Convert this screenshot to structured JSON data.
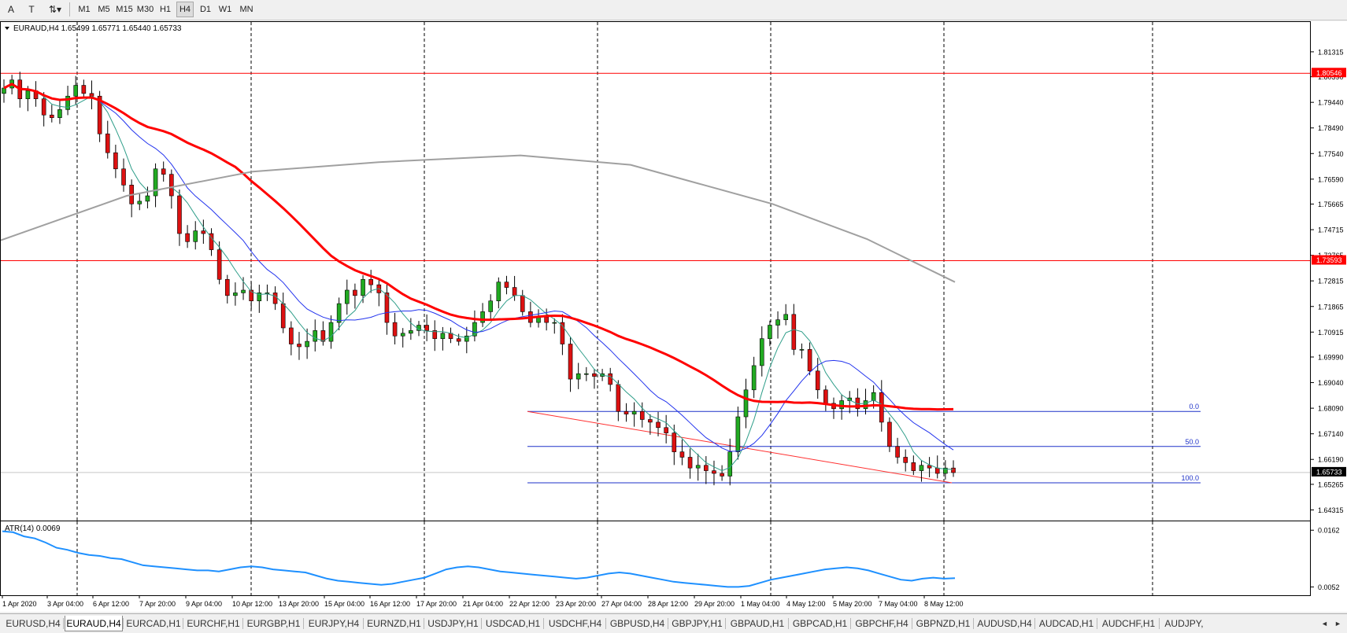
{
  "toolbar": {
    "tools": [
      {
        "glyph": "A",
        "icon": "text-tool-icon"
      },
      {
        "glyph": "T",
        "icon": "text-label-tool-icon"
      },
      {
        "glyph": "⇅▾",
        "icon": "arrow-tool-icon"
      }
    ],
    "timeframes": [
      "M1",
      "M5",
      "M15",
      "M30",
      "H1",
      "H4",
      "D1",
      "W1",
      "MN"
    ],
    "active_timeframe": "H4"
  },
  "chart": {
    "header": "EURAUD,H4  1.65499 1.65771 1.65440 1.65733",
    "price_ticks": [
      "1.81315",
      "1.80390",
      "1.79440",
      "1.78490",
      "1.77540",
      "1.76590",
      "1.75665",
      "1.74715",
      "1.73765",
      "1.72815",
      "1.71865",
      "1.70915",
      "1.69990",
      "1.69040",
      "1.68090",
      "1.67140",
      "1.66190",
      "1.65265",
      "1.64315"
    ],
    "price_range": [
      1.6395,
      1.8245
    ],
    "hlines": [
      {
        "label": "1.80546",
        "price": 1.80546,
        "color": "#ff0000"
      },
      {
        "label": "1.73593",
        "price": 1.73593,
        "color": "#ff0000"
      }
    ],
    "current_price": {
      "label": "1.65733",
      "price": 1.65733
    },
    "fib_levels": [
      {
        "label": "0.0",
        "price": 1.68
      },
      {
        "label": "50.0",
        "price": 1.667
      },
      {
        "label": "100.0",
        "price": 1.6535
      }
    ],
    "time_labels": [
      "1 Apr 2020",
      "3 Apr 04:00",
      "6 Apr 12:00",
      "7 Apr 20:00",
      "9 Apr 04:00",
      "10 Apr 12:00",
      "13 Apr 20:00",
      "15 Apr 04:00",
      "16 Apr 12:00",
      "17 Apr 20:00",
      "21 Apr 04:00",
      "22 Apr 12:00",
      "23 Apr 20:00",
      "27 Apr 04:00",
      "28 Apr 12:00",
      "29 Apr 20:00",
      "1 May 04:00",
      "4 May 12:00",
      "5 May 20:00",
      "7 May 04:00",
      "8 May 12:00"
    ],
    "colors": {
      "bull": "#22aa22",
      "bear": "#dd1111",
      "ma_fast": "#2f9e8a",
      "ma_mid": "#2233ee",
      "ma_slow": "#ff0000",
      "ma_long": "#a0a0a0",
      "fib": "#1e32c8",
      "trend": "#ff3030"
    }
  },
  "indicator": {
    "label": "ATR(14) 0.0069",
    "ticks": [
      "0.0162",
      "0.0052"
    ],
    "color": "#1e90ff"
  },
  "tabs": [
    "EURUSD,H4",
    "EURAUD,H4",
    "EURCAD,H1",
    "EURCHF,H1",
    "EURGBP,H1",
    "EURJPY,H4",
    "EURNZD,H1",
    "USDJPY,H1",
    "USDCAD,H1",
    "USDCHF,H4",
    "GBPUSD,H4",
    "GBPJPY,H1",
    "GBPAUD,H1",
    "GBPCAD,H1",
    "GBPCHF,H4",
    "GBPNZD,H1",
    "AUDUSD,H4",
    "AUDCAD,H1",
    "AUDCHF,H1",
    "AUDJPY,"
  ],
  "active_tab": "EURAUD,H4",
  "chart_data": {
    "type": "line",
    "title": "EURAUD,H4",
    "series": [
      {
        "values": [
          1.8,
          1.803,
          1.796,
          1.799,
          1.796,
          1.79,
          1.789,
          1.792,
          1.797,
          1.801,
          1.798,
          1.797,
          1.783,
          1.776,
          1.77,
          1.764,
          1.757,
          1.758,
          1.76,
          1.77,
          1.768,
          1.76,
          1.746,
          1.743,
          1.747,
          1.746,
          1.74,
          1.729,
          1.723,
          1.724,
          1.725,
          1.721,
          1.724,
          1.724,
          1.72,
          1.711,
          1.705,
          1.704,
          1.706,
          1.71,
          1.706,
          1.713,
          1.72,
          1.725,
          1.723,
          1.729,
          1.727,
          1.724,
          1.713,
          1.708,
          1.709,
          1.71,
          1.712,
          1.71,
          1.707,
          1.709,
          1.707,
          1.706,
          1.708,
          1.713,
          1.717,
          1.721,
          1.728,
          1.726,
          1.723,
          1.717,
          1.713,
          1.715,
          1.713,
          1.713,
          1.705,
          1.692,
          1.694,
          1.694,
          1.693,
          1.694,
          1.69,
          1.68,
          1.679,
          1.68,
          1.677,
          1.676,
          1.674,
          1.672,
          1.665,
          1.663,
          1.659,
          1.66,
          1.658,
          1.657,
          1.656,
          1.665,
          1.678,
          1.688,
          1.697,
          1.707,
          1.712,
          1.714,
          1.716,
          1.703,
          1.703,
          1.695,
          1.688,
          1.683,
          1.681,
          1.684,
          1.685,
          1.681,
          1.684,
          1.687,
          1.676,
          1.667,
          1.663,
          1.661,
          1.658,
          1.66,
          1.659,
          1.657,
          1.659,
          1.6573
        ]
      }
    ],
    "ylim": [
      1.64315,
      1.81315
    ]
  }
}
